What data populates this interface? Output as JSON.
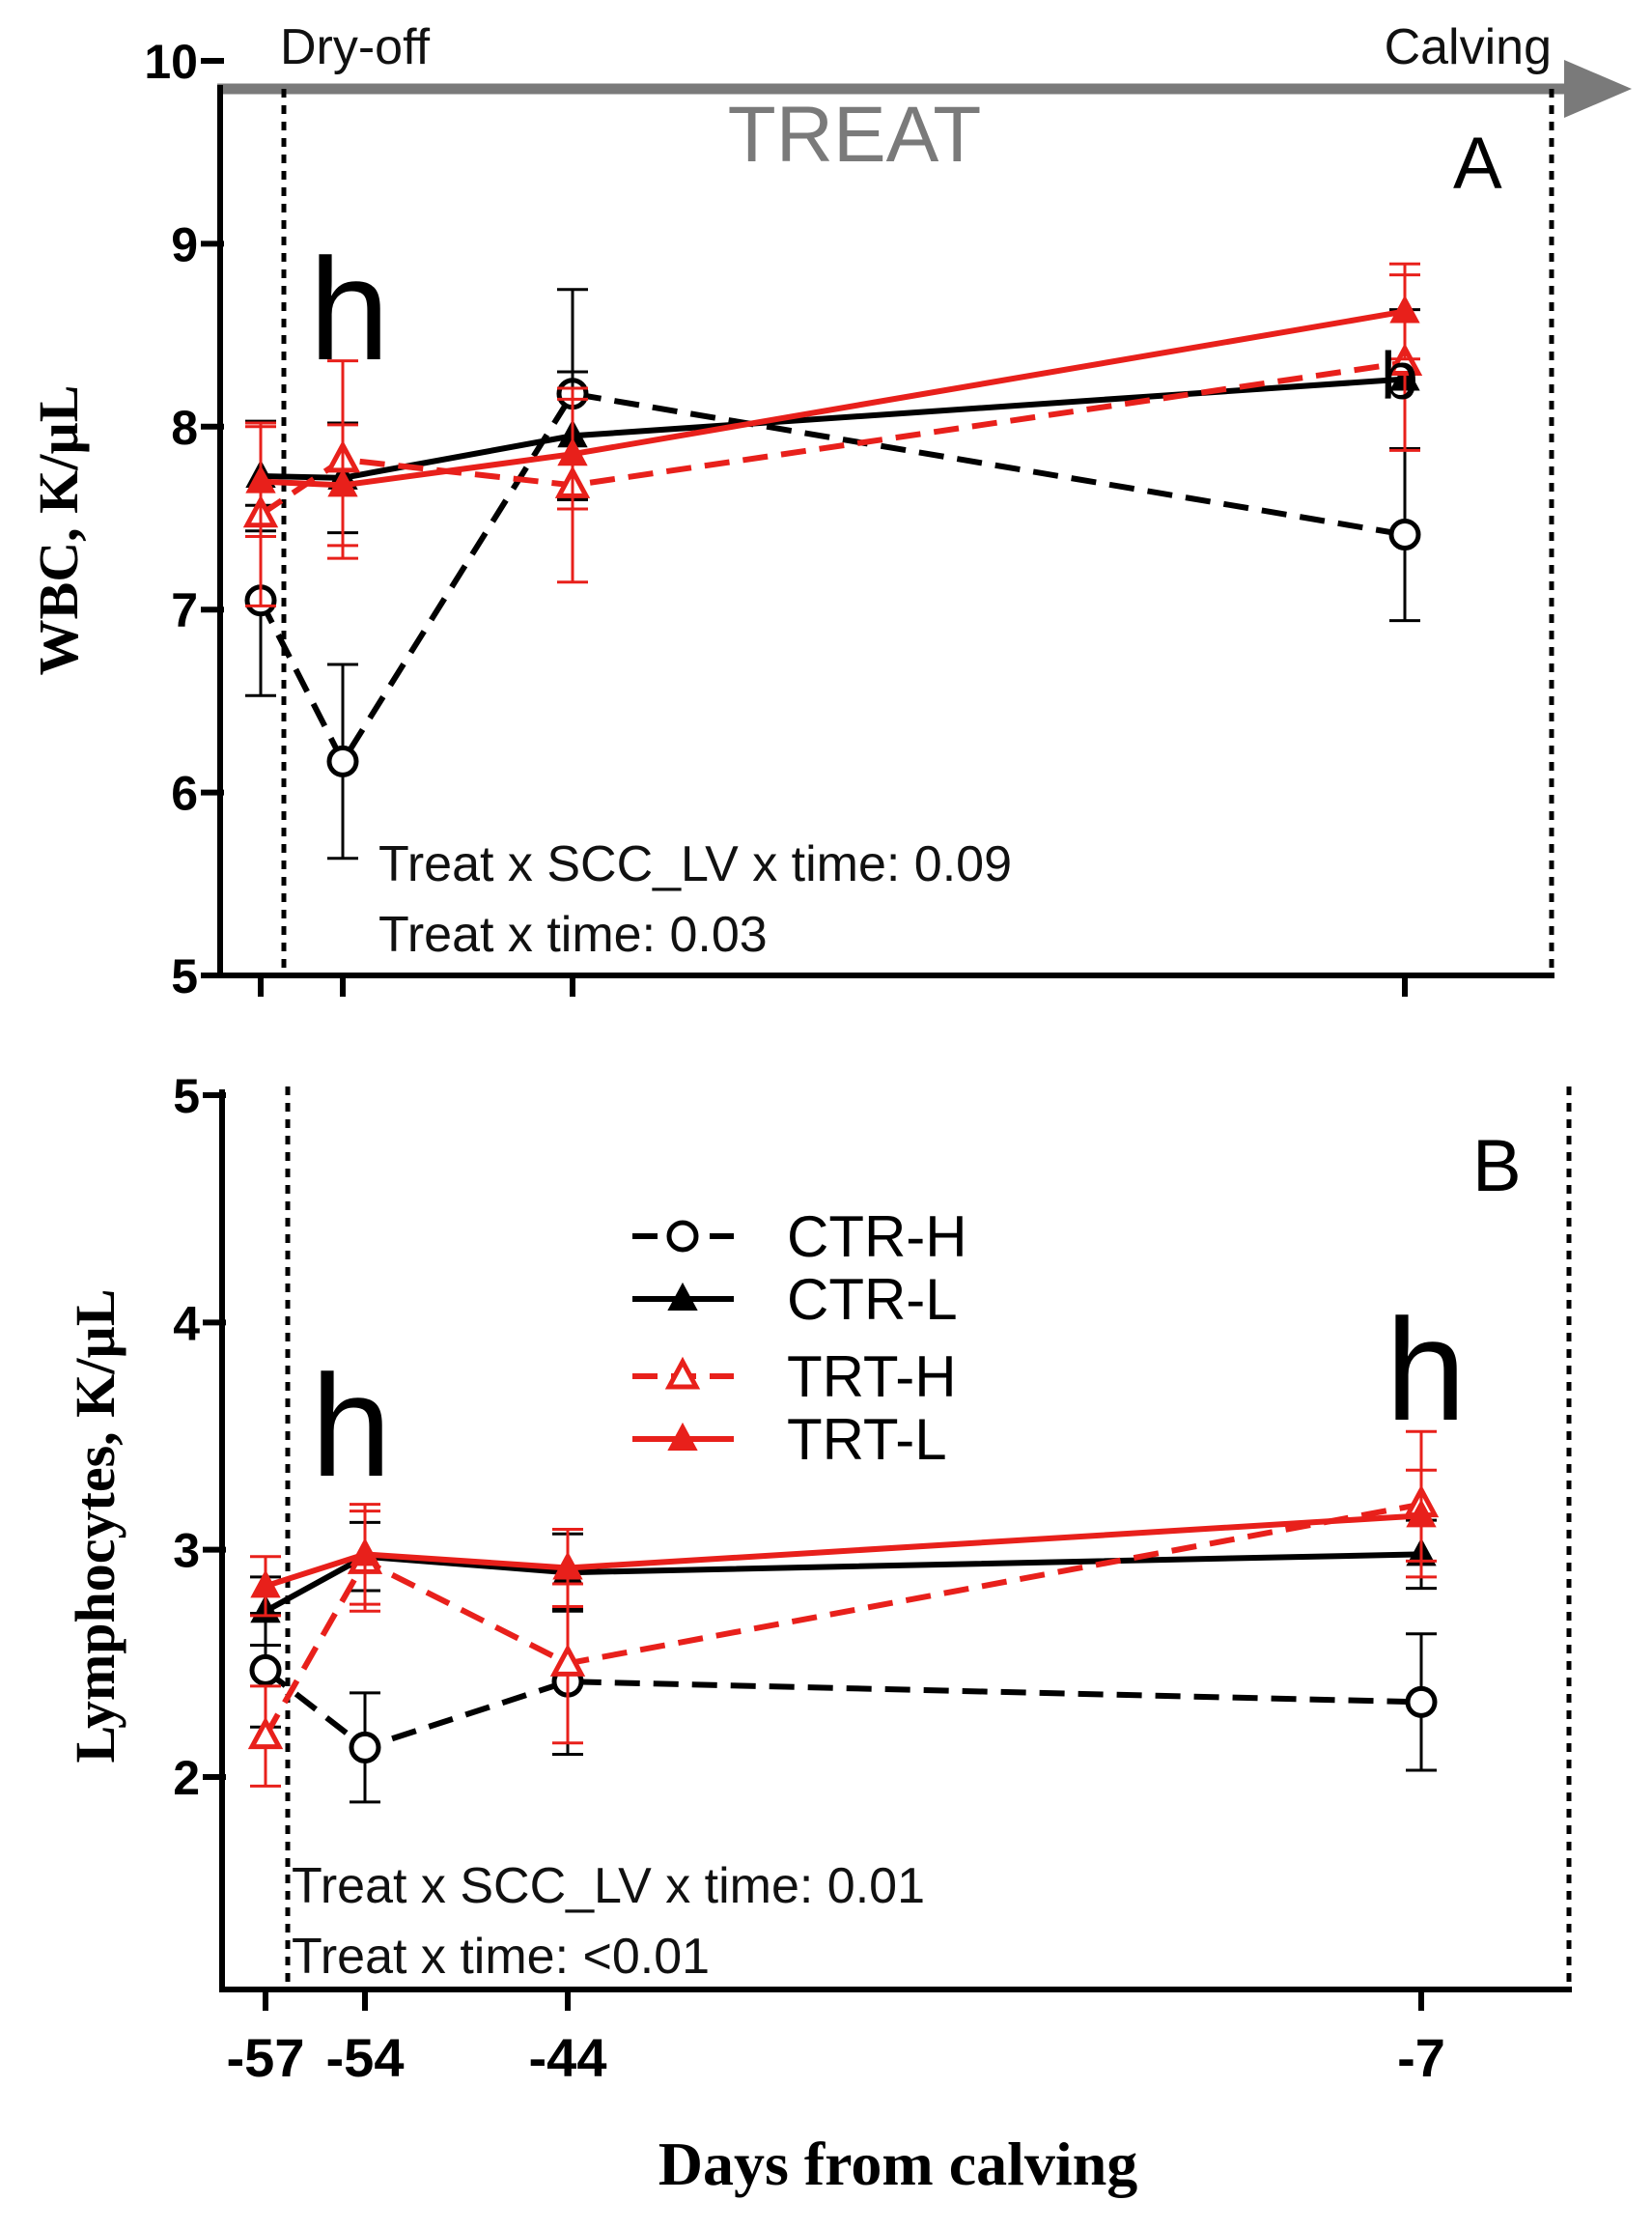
{
  "chart_data": [
    {
      "panel": "A",
      "type": "line",
      "ylabel": "WBC, K/µL",
      "xlabel": "",
      "ylim": [
        5,
        10
      ],
      "yticks": [
        5,
        6,
        7,
        8,
        9,
        10
      ],
      "x": [
        -57,
        -54,
        -44,
        -7
      ],
      "phase_labels": {
        "start": "Dry-off",
        "end": "Calving",
        "period": "TREAT"
      },
      "annotations": [
        "Treat x SCC_LV x time: 0.09",
        "Treat x time: 0.03"
      ],
      "significance": [
        {
          "x": -54,
          "y": 9.1,
          "label": "h"
        },
        {
          "x": -7,
          "y": 8.25,
          "label": "b"
        }
      ],
      "series": [
        {
          "name": "CTR-H",
          "color": "#000000",
          "dashed": true,
          "marker": "circle-open",
          "values": [
            7.05,
            6.17,
            8.18,
            7.41
          ],
          "errors": [
            0.52,
            0.53,
            0.57,
            0.47
          ]
        },
        {
          "name": "CTR-L",
          "color": "#000000",
          "dashed": false,
          "marker": "triangle-filled",
          "values": [
            7.73,
            7.72,
            7.95,
            8.26
          ],
          "errors": [
            0.3,
            0.3,
            0.35,
            0.38
          ]
        },
        {
          "name": "TRT-H",
          "color": "#e8201b",
          "dashed": true,
          "marker": "triangle-open",
          "values": [
            7.52,
            7.82,
            7.68,
            8.35
          ],
          "errors": [
            0.5,
            0.54,
            0.53,
            0.48
          ]
        },
        {
          "name": "TRT-L",
          "color": "#e8201b",
          "dashed": false,
          "marker": "triangle-filled",
          "values": [
            7.7,
            7.68,
            7.85,
            8.63
          ],
          "errors": [
            0.3,
            0.33,
            0.3,
            0.26
          ]
        }
      ]
    },
    {
      "panel": "B",
      "type": "line",
      "ylabel": "Lymphocytes, K/µL",
      "xlabel": "Days from calving",
      "ylim": [
        1,
        5
      ],
      "yticks": [
        2,
        3,
        4,
        5
      ],
      "x": [
        -57,
        -54,
        -44,
        -7
      ],
      "xticks": [
        -57,
        -54,
        -44,
        -7
      ],
      "annotations": [
        "Treat x SCC_LV x time: 0.01",
        "Treat x time: <0.01"
      ],
      "significance": [
        {
          "x": -54,
          "y": 3.55,
          "label": "h"
        },
        {
          "x": -7,
          "y": 3.9,
          "label": "h"
        }
      ],
      "series": [
        {
          "name": "CTR-H",
          "color": "#000000",
          "dashed": true,
          "marker": "circle-open",
          "values": [
            2.47,
            2.13,
            2.42,
            2.33
          ],
          "errors": [
            0.25,
            0.24,
            0.32,
            0.3
          ]
        },
        {
          "name": "CTR-L",
          "color": "#000000",
          "dashed": false,
          "marker": "triangle-filled",
          "values": [
            2.73,
            2.97,
            2.9,
            2.98
          ],
          "errors": [
            0.15,
            0.15,
            0.17,
            0.15
          ]
        },
        {
          "name": "TRT-H",
          "color": "#e8201b",
          "dashed": true,
          "marker": "triangle-open",
          "values": [
            2.18,
            2.95,
            2.5,
            3.2
          ],
          "errors": [
            0.22,
            0.22,
            0.35,
            0.32
          ]
        },
        {
          "name": "TRT-L",
          "color": "#e8201b",
          "dashed": false,
          "marker": "triangle-filled",
          "values": [
            2.84,
            2.98,
            2.92,
            3.15
          ],
          "errors": [
            0.13,
            0.22,
            0.17,
            0.2
          ]
        }
      ]
    }
  ]
}
